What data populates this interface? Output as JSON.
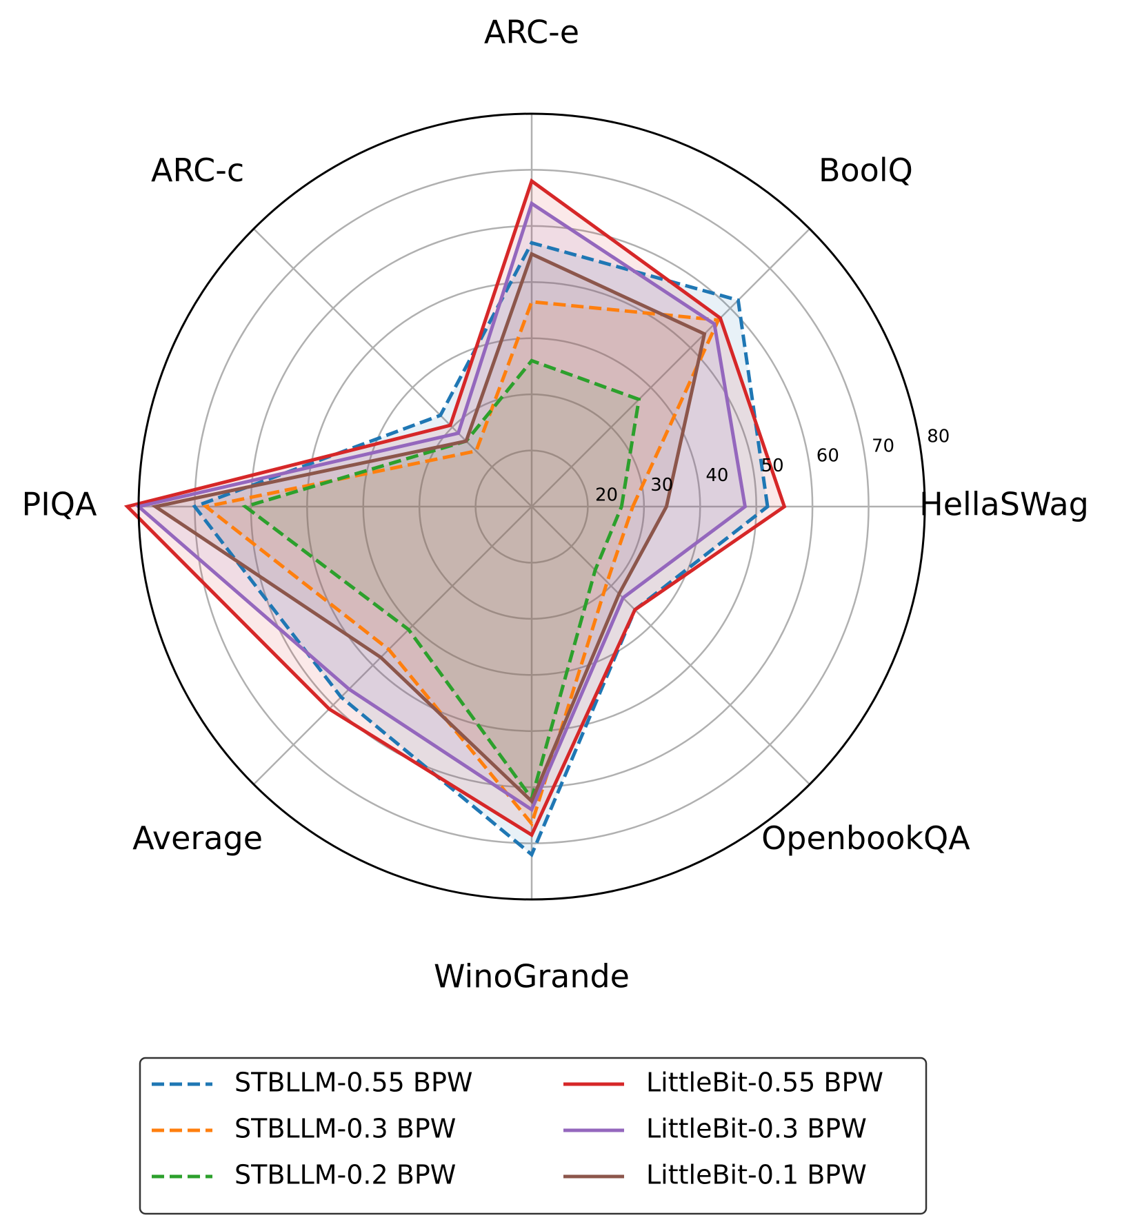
{
  "chart_data": {
    "type": "radar",
    "axes": [
      "HellaSWag",
      "BoolQ",
      "ARC-e",
      "ARC-c",
      "PIQA",
      "Average",
      "WinoGrande",
      "OpenbookQA"
    ],
    "rlim": [
      10,
      80
    ],
    "r_ticks": [
      20,
      30,
      40,
      50,
      60,
      70,
      80
    ],
    "grid": true,
    "legend_position": "bottom",
    "legend_columns": 2,
    "series": [
      {
        "name": "STBLLM-0.55 BPW",
        "color": "#1f77b4",
        "dash": true,
        "values": [
          52.0,
          62.0,
          57.0,
          33.0,
          70.0,
          58.0,
          72.0,
          36.0
        ]
      },
      {
        "name": "STBLLM-0.3 BPW",
        "color": "#ff7f0e",
        "dash": true,
        "values": [
          28.0,
          57.0,
          46.5,
          24.0,
          68.0,
          46.0,
          66.5,
          29.0
        ]
      },
      {
        "name": "STBLLM-0.2 BPW",
        "color": "#2ca02c",
        "dash": true,
        "values": [
          26.0,
          37.0,
          36.0,
          26.5,
          61.0,
          41.0,
          62.0,
          26.0
        ]
      },
      {
        "name": "LittleBit-0.55 BPW",
        "color": "#d62728",
        "dash": false,
        "values": [
          55.0,
          57.5,
          68.0,
          30.5,
          82.0,
          61.0,
          68.5,
          36.0
        ]
      },
      {
        "name": "LittleBit-0.3 BPW",
        "color": "#9467bd",
        "dash": false,
        "values": [
          48.0,
          56.0,
          64.0,
          28.5,
          80.0,
          56.0,
          64.0,
          33.0
        ]
      },
      {
        "name": "LittleBit-0.1 BPW",
        "color": "#8c564b",
        "dash": false,
        "values": [
          34.0,
          53.5,
          55.0,
          26.5,
          77.0,
          48.0,
          62.5,
          32.0
        ]
      }
    ]
  }
}
